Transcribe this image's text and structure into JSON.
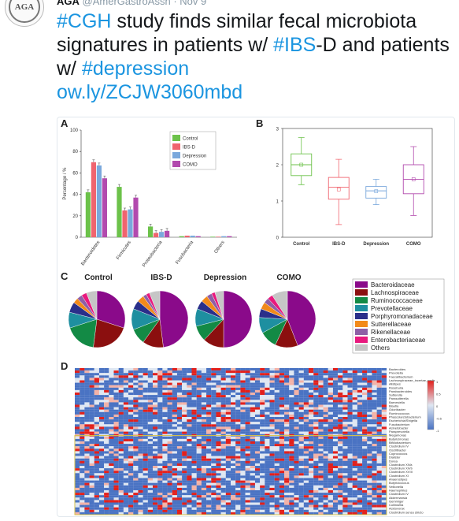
{
  "tweet": {
    "author_name": "AGA",
    "author_handle": "@AmerGastroAssn",
    "separator": "·",
    "date": "Nov 9",
    "avatar_text": "AGA",
    "text": {
      "hashtag_cgh": "#CGH",
      "part1": " study finds similar fecal microbiota signatures in patients w/ ",
      "hashtag_ibs": "#IBS",
      "part2": "-D and patients w/ ",
      "hashtag_depression": "#depression",
      "link": "ow.ly/ZCJW3060mbd"
    }
  },
  "figure": {
    "panel_labels": [
      "A",
      "B",
      "C",
      "D"
    ],
    "colors": {
      "Control": "#6cc24a",
      "IBS-D": "#f0646e",
      "Depression": "#7aa8dc",
      "COMO": "#b24aae"
    },
    "family_colors": [
      "#8a0a8a",
      "#8b0f0f",
      "#138a45",
      "#1e8fa0",
      "#2a2f8a",
      "#f28a1a",
      "#8e5fa6",
      "#e8197e",
      "#c6c6c6"
    ],
    "heatmap": {
      "rows": 60,
      "cols": 64,
      "colors": {
        "low": "#4a73c3",
        "mid": "#dfe7f2",
        "high": "#e2201c"
      },
      "scale_ticks": [
        "1",
        "0.5",
        "0",
        "-0.5",
        "-1"
      ],
      "row_labels": [
        "Bacteroides",
        "Prevotella",
        "Faecalibacterium",
        "Lachnospiraceae_incertae_sedis",
        "Alistipes",
        "Roseburia",
        "Parabacteroides",
        "Sutterella",
        "Parasutterella",
        "Barnesiella",
        "Blautia",
        "Odoribacter",
        "Ruminococcus",
        "Phascolarctobacterium",
        "Escherichia/Shigella",
        "Fusobacterium",
        "Acinetobacter",
        "Paraprevotella",
        "Megamonas",
        "Butyricimonas",
        "Bifidobacterium",
        "Clostridium IV",
        "Oscillibacter",
        "Coprococcus",
        "Dialister",
        "Dorea",
        "Clostridium XIVa",
        "Clostridium XIVb",
        "Clostridium XVIII",
        "Clostridium XI",
        "Anaerostipes",
        "Butyricicoccus",
        "Veillonella",
        "Haemophilus",
        "Clostridium IV",
        "Akkermansia",
        "Gemmiger",
        "Collinsella",
        "Acidovorax",
        "Clostridium sensu stricto"
      ]
    }
  },
  "chart_data": [
    {
      "type": "bar",
      "panel": "A",
      "categories": [
        "Bacteroidetes",
        "Firmicutes",
        "Proteobacteria",
        "Fusobacteria",
        "Others"
      ],
      "series": [
        {
          "name": "Control",
          "values": [
            42,
            47,
            10,
            1,
            0.5
          ]
        },
        {
          "name": "IBS-D",
          "values": [
            70,
            25,
            4,
            1.5,
            0.5
          ]
        },
        {
          "name": "Depression",
          "values": [
            67,
            26,
            5,
            1.5,
            1
          ]
        },
        {
          "name": "COMO",
          "values": [
            55,
            37,
            6,
            1,
            1
          ]
        }
      ],
      "ylabel": "Percentage / %",
      "ylim": [
        0,
        100
      ],
      "yticks": [
        0,
        20,
        40,
        60,
        80,
        100
      ],
      "legend": "top-right"
    },
    {
      "type": "box",
      "panel": "B",
      "categories": [
        "Control",
        "IBS-D",
        "Depression",
        "COMO"
      ],
      "boxes": [
        {
          "name": "Control",
          "min": 1.45,
          "q1": 1.7,
          "median": 2.0,
          "q3": 2.3,
          "max": 2.75,
          "mean": 2.0
        },
        {
          "name": "IBS-D",
          "min": 0.35,
          "q1": 1.05,
          "median": 1.38,
          "q3": 1.65,
          "max": 2.15,
          "mean": 1.32
        },
        {
          "name": "Depression",
          "min": 0.9,
          "q1": 1.08,
          "median": 1.28,
          "q3": 1.4,
          "max": 1.6,
          "mean": 1.27
        },
        {
          "name": "COMO",
          "min": 0.6,
          "q1": 1.2,
          "median": 1.6,
          "q3": 2.0,
          "max": 2.5,
          "mean": 1.6
        }
      ],
      "ylim": [
        0,
        3
      ],
      "yticks": [
        0,
        1,
        2,
        3
      ]
    },
    {
      "type": "pie",
      "panel": "C",
      "labels": [
        "Bacteroidaceae",
        "Lachnospiraceae",
        "Ruminococcaceae",
        "Prevotellaceae",
        "Porphyromonadaceae",
        "Sutterellaceae",
        "Rikenellaceae",
        "Enterobacteriaceae",
        "Others"
      ],
      "pies": [
        {
          "name": "Control",
          "values": [
            30,
            22,
            18,
            9,
            6,
            3,
            3,
            3,
            6
          ]
        },
        {
          "name": "IBS-D",
          "values": [
            48,
            12,
            9,
            12,
            5,
            4,
            2,
            2,
            6
          ]
        },
        {
          "name": "Depression",
          "values": [
            50,
            12,
            9,
            10,
            5,
            4,
            3,
            2,
            5
          ]
        },
        {
          "name": "COMO",
          "values": [
            44,
            13,
            10,
            9,
            5,
            4,
            3,
            3,
            9
          ]
        }
      ]
    }
  ]
}
